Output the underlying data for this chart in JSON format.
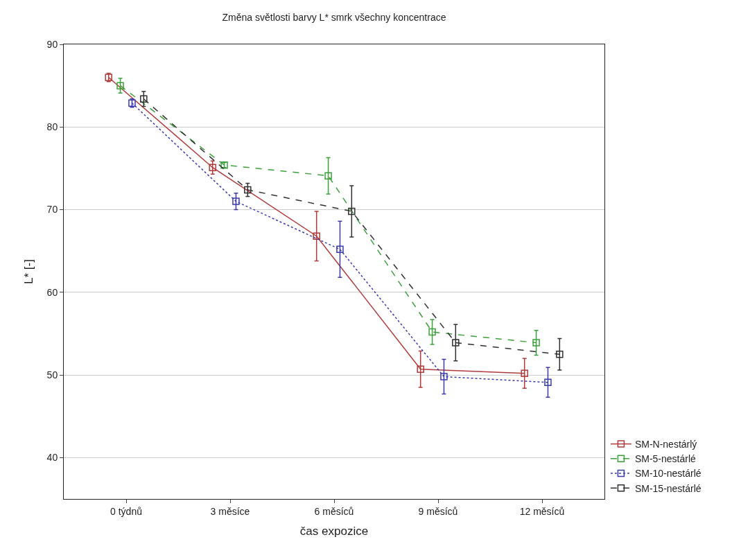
{
  "chart_data": {
    "type": "line",
    "title": "Změna světlosti barvy L* smrk všechny koncentrace",
    "xlabel": "čas expozice",
    "ylabel": "L* [-]",
    "categories": [
      "0 týdnů",
      "3 měsíce",
      "6 měsíců",
      "9 měsíců",
      "12 měsíců"
    ],
    "ylim": [
      35,
      90
    ],
    "yticks": [
      40,
      50,
      60,
      70,
      80,
      90
    ],
    "grid": "y",
    "legend": "bottom right",
    "marker": "square",
    "series": [
      {
        "name": "SM-N-nestárlý",
        "color": "#b03a3a",
        "line_style": "solid",
        "values": [
          86.0,
          75.1,
          66.8,
          50.7,
          50.2
        ],
        "errors": [
          0.5,
          0.8,
          3.0,
          2.2,
          1.8
        ]
      },
      {
        "name": "SM-5-nestárlé",
        "color": "#3aa03a",
        "line_style": "dashed",
        "values": [
          85.0,
          75.4,
          74.1,
          55.2,
          53.9
        ],
        "errors": [
          0.9,
          0.3,
          2.2,
          1.5,
          1.5
        ]
      },
      {
        "name": "SM-10-nestárlé",
        "color": "#3a3ab0",
        "line_style": "dotted",
        "values": [
          82.9,
          71.0,
          65.2,
          49.8,
          49.1
        ],
        "errors": [
          0.5,
          1.0,
          3.4,
          2.1,
          1.8
        ]
      },
      {
        "name": "SM-15-nestárlé",
        "color": "#303030",
        "line_style": "dashed",
        "values": [
          83.4,
          72.4,
          69.8,
          53.9,
          52.5
        ],
        "errors": [
          0.9,
          0.8,
          3.1,
          2.2,
          1.9
        ]
      }
    ]
  }
}
